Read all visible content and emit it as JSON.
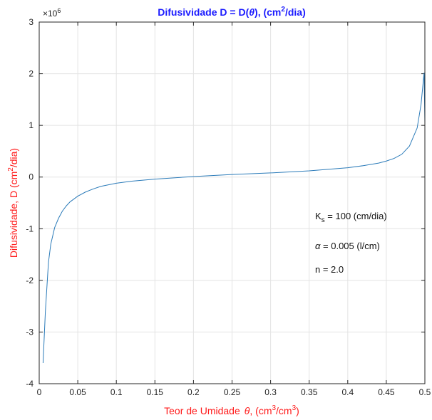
{
  "chart_data": {
    "type": "line",
    "title_main": "Difusividade D = D(",
    "title_theta": "θ",
    "title_mid": "), (cm",
    "title_sup": "2",
    "title_end": "/dia)",
    "xlabel_main": "Teor de Umidade",
    "xlabel_theta": "θ",
    "xlabel_mid": ", (cm",
    "xlabel_sup1": "3",
    "xlabel_mid2": "/cm",
    "xlabel_sup2": "3",
    "xlabel_end": ")",
    "ylabel_main": "Difusividade, D (cm",
    "ylabel_sup": "2",
    "ylabel_end": "/dia)",
    "y_exponent_base": "×10",
    "y_exponent_power": "6",
    "xlim": [
      0,
      0.5
    ],
    "ylim": [
      -4,
      3
    ],
    "x_ticks": [
      0,
      0.05,
      0.1,
      0.15,
      0.2,
      0.25,
      0.3,
      0.35,
      0.4,
      0.45,
      0.5
    ],
    "x_tick_labels": [
      "0",
      "0.05",
      "0.1",
      "0.15",
      "0.2",
      "0.25",
      "0.3",
      "0.35",
      "0.4",
      "0.45",
      "0.5"
    ],
    "y_ticks": [
      -4,
      -3,
      -2,
      -1,
      0,
      1,
      2,
      3
    ],
    "y_tick_labels": [
      "-4",
      "-3",
      "-2",
      "-1",
      "0",
      "1",
      "2",
      "3"
    ],
    "grid": true,
    "line_color": "#2b7bb9",
    "title_color": "#1a1aff",
    "label_color": "#ff1a1a",
    "series": [
      {
        "x": [
          0.005,
          0.008,
          0.012,
          0.015,
          0.02,
          0.025,
          0.03,
          0.035,
          0.04,
          0.05,
          0.06,
          0.07,
          0.08,
          0.1,
          0.12,
          0.15,
          0.2,
          0.25,
          0.3,
          0.35,
          0.4,
          0.42,
          0.44,
          0.45,
          0.46,
          0.47,
          0.48,
          0.49,
          0.495,
          0.499,
          0.5
        ],
        "y": [
          -3.6,
          -2.6,
          -1.65,
          -1.3,
          -0.98,
          -0.8,
          -0.66,
          -0.56,
          -0.48,
          -0.37,
          -0.29,
          -0.23,
          -0.18,
          -0.12,
          -0.08,
          -0.04,
          0.01,
          0.05,
          0.08,
          0.12,
          0.18,
          0.22,
          0.27,
          0.31,
          0.36,
          0.44,
          0.6,
          0.95,
          1.4,
          2.02,
          1.05
        ]
      }
    ],
    "annotations": {
      "ks_label": "K",
      "ks_sub": "s",
      "ks_value": " = 100 (cm/dia)",
      "alpha_symbol": "α",
      "alpha_value": " = 0.005 (l/cm)",
      "n_text": "n = 2.0"
    }
  }
}
